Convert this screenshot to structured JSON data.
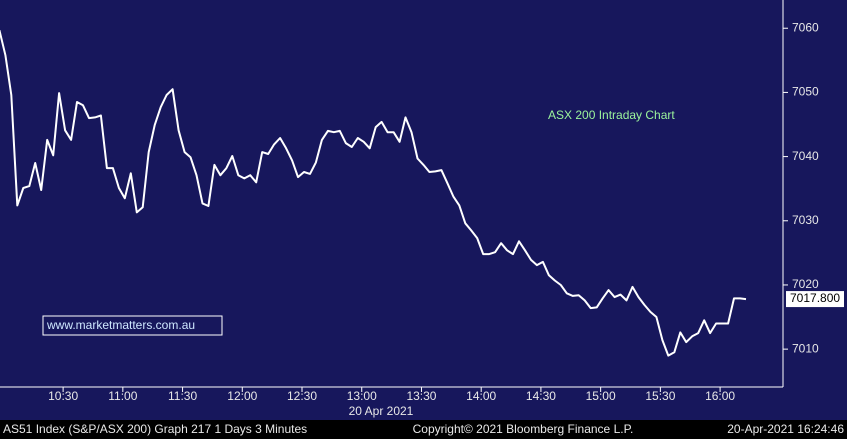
{
  "chart_data": {
    "type": "line",
    "annotation": "ASX 200 Intraday Chart",
    "watermark": "www.marketmatters.com.au",
    "x_date_label": "20 Apr 2021",
    "color": "#ffffff",
    "x": [
      598,
      601,
      604,
      607,
      610,
      613,
      616,
      619,
      622,
      625,
      628,
      631,
      634,
      637,
      640,
      643,
      646,
      649,
      652,
      655,
      658,
      661,
      664,
      667,
      670,
      673,
      676,
      679,
      682,
      685,
      688,
      691,
      694,
      697,
      700,
      703,
      706,
      709,
      712,
      715,
      718,
      721,
      724,
      727,
      730,
      733,
      736,
      739,
      742,
      745,
      748,
      751,
      754,
      757,
      760,
      763,
      766,
      769,
      772,
      775,
      778,
      781,
      784,
      787,
      790,
      793,
      796,
      799,
      802,
      805,
      808,
      811,
      814,
      817,
      820,
      823,
      826,
      829,
      832,
      835,
      838,
      841,
      844,
      847,
      850,
      853,
      856,
      859,
      862,
      865,
      868,
      871,
      874,
      877,
      880,
      883,
      886,
      889,
      892,
      895,
      898,
      901,
      904,
      907,
      910,
      913,
      916,
      919,
      922,
      925,
      928,
      931,
      934,
      937,
      940,
      943,
      946,
      949,
      952,
      955,
      958,
      961,
      964,
      967,
      970,
      973
    ],
    "values": [
      7059.7,
      7055.8,
      7049.6,
      7032.4,
      7035.1,
      7035.4,
      7039,
      7034.8,
      7042.6,
      7040.2,
      7049.9,
      7044.1,
      7042.6,
      7048.5,
      7048,
      7046,
      7046.1,
      7046.4,
      7038.2,
      7038.2,
      7035.1,
      7033.5,
      7037.4,
      7031.3,
      7032.1,
      7040.7,
      7044.9,
      7047.7,
      7049.6,
      7050.5,
      7044.1,
      7040.7,
      7039.9,
      7037.1,
      7032.7,
      7032.3,
      7038.7,
      7037.1,
      7038.2,
      7040.1,
      7037.1,
      7036.6,
      7037.1,
      7036,
      7040.7,
      7040.4,
      7041.9,
      7042.9,
      7041.3,
      7039.4,
      7036.8,
      7037.6,
      7037.3,
      7039.1,
      7042.6,
      7044,
      7043.8,
      7044,
      7042.1,
      7041.5,
      7042.9,
      7042.3,
      7041.3,
      7044.6,
      7045.4,
      7043.8,
      7043.8,
      7042.3,
      7046.1,
      7043.8,
      7039.7,
      7038.7,
      7037.6,
      7037.7,
      7037.9,
      7035.9,
      7033.8,
      7032.4,
      7029.6,
      7028.5,
      7027.3,
      7024.8,
      7024.8,
      7025.1,
      7026.5,
      7025.4,
      7024.8,
      7026.8,
      7025.4,
      7023.9,
      7023.1,
      7023.6,
      7021.5,
      7020.7,
      7020,
      7018.7,
      7018.3,
      7018.4,
      7017.6,
      7016.4,
      7016.5,
      7017.9,
      7019.2,
      7018.1,
      7018.5,
      7017.6,
      7019.7,
      7018.1,
      7016.9,
      7015.8,
      7015,
      7011.4,
      7009,
      7009.5,
      7012.6,
      7011.1,
      7012,
      7012.5,
      7014.5,
      7012.5,
      7014,
      7014,
      7014,
      7017.9,
      7017.9,
      7017.8
    ],
    "last_price": {
      "value": 7017.8,
      "label": "7017.800"
    },
    "xlim": [
      598.3,
      991.6
    ],
    "xticks": [
      {
        "value": 630,
        "label": "10:30"
      },
      {
        "value": 660,
        "label": "11:00"
      },
      {
        "value": 690,
        "label": "11:30"
      },
      {
        "value": 720,
        "label": "12:00"
      },
      {
        "value": 750,
        "label": "12:30"
      },
      {
        "value": 780,
        "label": "13:00"
      },
      {
        "value": 810,
        "label": "13:30"
      },
      {
        "value": 840,
        "label": "14:00"
      },
      {
        "value": 870,
        "label": "14:30"
      },
      {
        "value": 900,
        "label": "15:00"
      },
      {
        "value": 930,
        "label": "15:30"
      },
      {
        "value": 960,
        "label": "16:00"
      }
    ],
    "ylim": [
      7004.1,
      7064.4
    ],
    "yticks": [
      7010,
      7020,
      7030,
      7040,
      7050,
      7060
    ]
  },
  "footer": {
    "left": "AS51 Index (S&P/ASX 200) Graph 217 1 Days 3 Minutes",
    "center": "Copyright© 2021 Bloomberg Finance L.P.",
    "right": "20-Apr-2021 16:24:46"
  }
}
